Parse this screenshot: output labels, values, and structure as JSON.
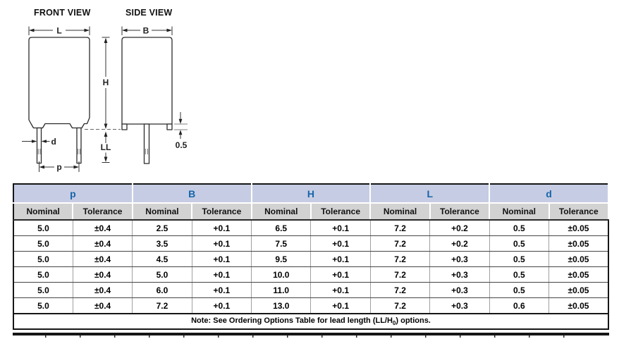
{
  "diagram": {
    "front_view_title": "FRONT VIEW",
    "side_view_title": "SIDE VIEW",
    "dim_L": "L",
    "dim_B": "B",
    "dim_H": "H",
    "dim_LL": "LL",
    "dim_d": "d",
    "dim_p": "p",
    "dim_standoff": "0.5"
  },
  "table": {
    "group_headers": [
      "p",
      "B",
      "H",
      "L",
      "d"
    ],
    "sub_headers": [
      "Nominal",
      "Tolerance"
    ],
    "rows": [
      [
        "5.0",
        "±0.4",
        "2.5",
        "+0.1",
        "6.5",
        "+0.1",
        "7.2",
        "+0.2",
        "0.5",
        "±0.05"
      ],
      [
        "5.0",
        "±0.4",
        "3.5",
        "+0.1",
        "7.5",
        "+0.1",
        "7.2",
        "+0.2",
        "0.5",
        "±0.05"
      ],
      [
        "5.0",
        "±0.4",
        "4.5",
        "+0.1",
        "9.5",
        "+0.1",
        "7.2",
        "+0.3",
        "0.5",
        "±0.05"
      ],
      [
        "5.0",
        "±0.4",
        "5.0",
        "+0.1",
        "10.0",
        "+0.1",
        "7.2",
        "+0.3",
        "0.5",
        "±0.05"
      ],
      [
        "5.0",
        "±0.4",
        "6.0",
        "+0.1",
        "11.0",
        "+0.1",
        "7.2",
        "+0.3",
        "0.5",
        "±0.05"
      ],
      [
        "5.0",
        "±0.4",
        "7.2",
        "+0.1",
        "13.0",
        "+0.1",
        "7.2",
        "+0.3",
        "0.6",
        "±0.05"
      ]
    ],
    "note": {
      "prefix": "Note: See Ordering Options Table for lead length (LL/H",
      "subscript": "0",
      "suffix": ") options."
    }
  },
  "colors": {
    "group_header_bg": "#c6cce3",
    "group_header_text": "#1565aa",
    "sub_header_bg": "#d2d2d2",
    "table_border": "#161616"
  }
}
